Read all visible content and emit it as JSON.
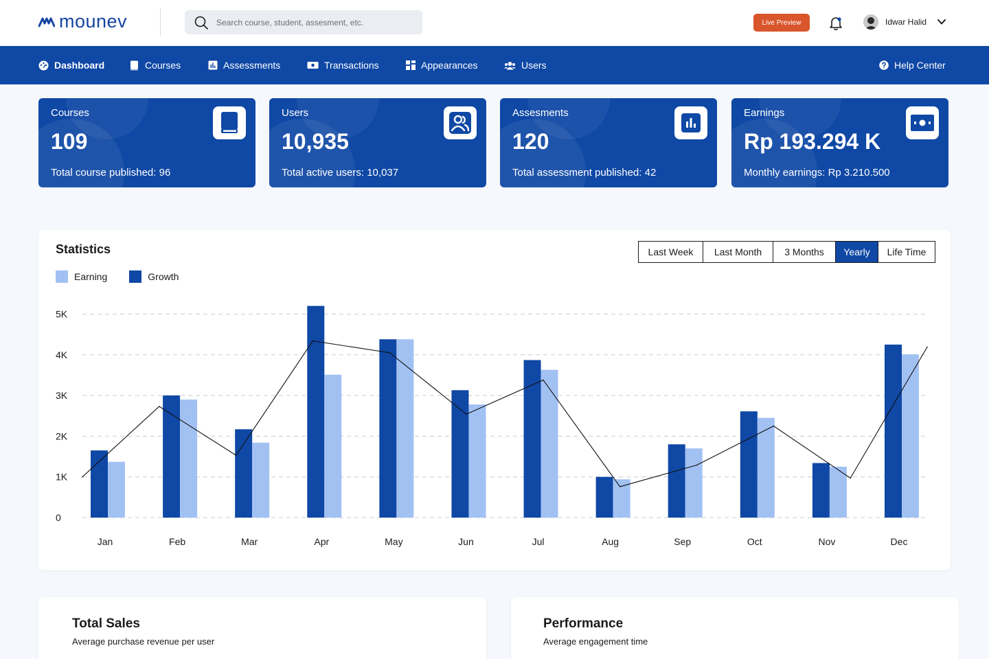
{
  "brand": {
    "name": "mounev",
    "color": "#1746a2"
  },
  "search": {
    "placeholder": "Search course, student, assesment, etc."
  },
  "header": {
    "live_preview": "Live Preview",
    "user_name": "Idwar Halid"
  },
  "nav": {
    "items": [
      {
        "label": "Dashboard",
        "icon": "dashboard-icon",
        "active": true
      },
      {
        "label": "Courses",
        "icon": "book-icon"
      },
      {
        "label": "Assessments",
        "icon": "chart-icon"
      },
      {
        "label": "Transactions",
        "icon": "money-icon"
      },
      {
        "label": "Appearances",
        "icon": "grid-icon"
      },
      {
        "label": "Users",
        "icon": "users-icon"
      }
    ],
    "help": "Help Center"
  },
  "cards": [
    {
      "title": "Courses",
      "value": "109",
      "sub": "Total course published: 96",
      "icon": "book-icon"
    },
    {
      "title": "Users",
      "value": "10,935",
      "sub": "Total active users: 10,037",
      "icon": "users-icon"
    },
    {
      "title": "Assesments",
      "value": "120",
      "sub": "Total assessment published: 42",
      "icon": "chart-icon"
    },
    {
      "title": "Earnings",
      "value": "Rp 193.294 K",
      "sub": "Monthly earnings: Rp 3.210.500",
      "icon": "money-icon"
    }
  ],
  "statistics": {
    "title": "Statistics",
    "periods": [
      "Last Week",
      "Last Month",
      "3 Months",
      "Yearly",
      "Life Time"
    ],
    "selected_period": "Yearly"
  },
  "chart_data": {
    "type": "bar",
    "categories": [
      "Jan",
      "Feb",
      "Mar",
      "Apr",
      "May",
      "Jun",
      "Jul",
      "Aug",
      "Sep",
      "Oct",
      "Nov",
      "Dec"
    ],
    "series": [
      {
        "name": "Growth",
        "type": "bar",
        "color": "#0f48a5",
        "values": [
          1650,
          3000,
          2170,
          5200,
          4380,
          3130,
          3870,
          1000,
          1800,
          2610,
          1340,
          4250
        ]
      },
      {
        "name": "Earning",
        "type": "bar",
        "color": "#a2c1f3",
        "values": [
          1370,
          2900,
          1840,
          3510,
          4380,
          2780,
          3630,
          940,
          1700,
          2450,
          1250,
          4010
        ]
      },
      {
        "type": "line",
        "color": "#111111",
        "values": [
          1000,
          2730,
          1530,
          4340,
          4050,
          2540,
          3380,
          760,
          1290,
          2250,
          970,
          4190
        ]
      }
    ],
    "yticks": [
      "0",
      "1K",
      "2K",
      "3K",
      "4K",
      "5K"
    ],
    "ylim": [
      0,
      5000
    ],
    "grid": true,
    "legend_position": "top-left"
  },
  "bottom": [
    {
      "title": "Total Sales",
      "sub": "Average purchase revenue per user"
    },
    {
      "title": "Performance",
      "sub": "Average engagement time"
    }
  ],
  "colors": {
    "primary": "#0f48a5",
    "accent": "#d9552b",
    "light_bar": "#a2c1f3"
  }
}
